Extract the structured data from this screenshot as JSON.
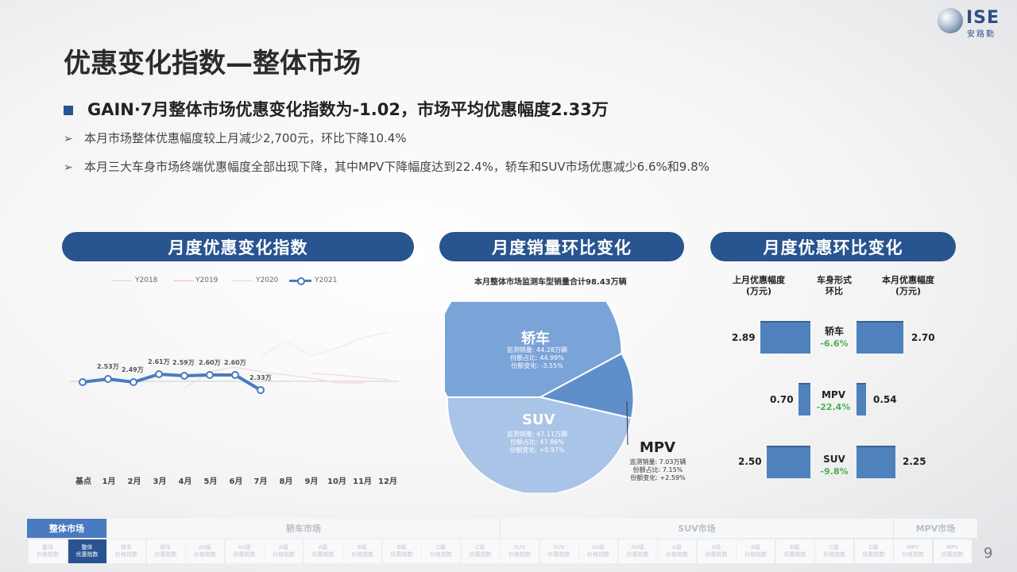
{
  "page_title": "优惠变化指数—整体市场",
  "logo": {
    "name": "ISE",
    "sub": "安路勤"
  },
  "headline": "GAIN·7月整体市场优惠变化指数为-1.02，市场平均优惠幅度2.33万",
  "bullets": [
    "本月市场整体优惠幅度较上月减少2,700元，环比下降10.4%",
    "本月三大车身市场终端优惠幅度全部出现下降，其中MPV下降幅度达到22.4%，轿车和SUV市场优惠减少6.6%和9.8%"
  ],
  "sections": {
    "s1": "月度优惠变化指数",
    "s2": "月度销量环比变化",
    "s3": "月度优惠环比变化"
  },
  "line_chart": {
    "legend": [
      "Y2018",
      "Y2019",
      "Y2020",
      "Y2021"
    ],
    "months": [
      "基点",
      "1月",
      "2月",
      "3月",
      "4月",
      "5月",
      "6月",
      "7月",
      "8月",
      "9月",
      "10月",
      "11月",
      "12月"
    ],
    "point_labels": [
      "2.53万",
      "2.49万",
      "2.61万",
      "2.59万",
      "2.60万",
      "2.60万",
      "2.33万"
    ]
  },
  "chart_data": [
    {
      "type": "line",
      "x": [
        "基点",
        "1月",
        "2月",
        "3月",
        "4月",
        "5月",
        "6月",
        "7月"
      ],
      "series": [
        {
          "name": "Y2021",
          "values": [
            0,
            0.4,
            -0.15,
            1.1,
            0.9,
            1.0,
            1.0,
            -1.02
          ],
          "labels": [
            "",
            "2.53万",
            "2.49万",
            "2.61万",
            "2.59万",
            "2.60万",
            "2.60万",
            "2.33万"
          ]
        }
      ],
      "legend": [
        "Y2018",
        "Y2019",
        "Y2020",
        "Y2021"
      ],
      "xlabel": "",
      "ylabel": ""
    },
    {
      "type": "pie",
      "title": "本月整体市场监测车型销量合计98.43万辆",
      "slices": [
        {
          "name": "轿车",
          "value": 44.99
        },
        {
          "name": "MPV",
          "value": 7.15
        },
        {
          "name": "SUV",
          "value": 47.86
        }
      ]
    },
    {
      "type": "bar",
      "categories": [
        "轿车",
        "MPV",
        "SUV"
      ],
      "series": [
        {
          "name": "上月优惠幅度(万元)",
          "values": [
            2.89,
            0.7,
            2.5
          ]
        },
        {
          "name": "本月优惠幅度(万元)",
          "values": [
            2.7,
            0.54,
            2.25
          ]
        }
      ]
    }
  ],
  "pie": {
    "title": "本月整体市场监测车型销量合计98.43万辆",
    "sedan": {
      "name": "轿车",
      "l1": "监测销量: 44.28万辆",
      "l2": "份额占比: 44.99%",
      "l3": "份额变化: -3.55%"
    },
    "suv": {
      "name": "SUV",
      "l1": "监测销量: 47.11万辆",
      "l2": "份额占比: 47.86%",
      "l3": "份额变化: +0.97%"
    },
    "mpv": {
      "name": "MPV",
      "l1": "监测销量: 7.03万辆",
      "l2": "份额占比: 7.15%",
      "l3": "份额变化: +2.59%"
    }
  },
  "compare": {
    "h_left": "上月优惠幅度",
    "h_left2": "(万元)",
    "h_mid": "车身形式",
    "h_mid2": "环比",
    "h_right": "本月优惠幅度",
    "h_right2": "(万元)",
    "rows": [
      {
        "seg": "轿车",
        "pct": "-6.6%",
        "prev": "2.89",
        "cur": "2.70"
      },
      {
        "seg": "MPV",
        "pct": "-22.4%",
        "prev": "0.70",
        "cur": "0.54"
      },
      {
        "seg": "SUV",
        "pct": "-9.8%",
        "prev": "2.50",
        "cur": "2.25"
      }
    ],
    "color_bar": "#4f81bd"
  },
  "nav": {
    "top": [
      "整体市场",
      "轿车市场",
      "SUV市场",
      "MPV市场"
    ],
    "subs": [
      [
        "整体",
        "价格指数"
      ],
      [
        "整体",
        "优惠指数"
      ],
      [
        "轿车",
        "价格指数"
      ],
      [
        "轿车",
        "优惠指数"
      ],
      [
        "A0级",
        "价格指数"
      ],
      [
        "A0级",
        "优惠指数"
      ],
      [
        "A级",
        "价格指数"
      ],
      [
        "A级",
        "优惠指数"
      ],
      [
        "B级",
        "价格指数"
      ],
      [
        "B级",
        "优惠指数"
      ],
      [
        "C级",
        "价格指数"
      ],
      [
        "C级",
        "优惠指数"
      ],
      [
        "SUV",
        "价格指数"
      ],
      [
        "SUV",
        "优惠指数"
      ],
      [
        "A0级",
        "价格指数"
      ],
      [
        "A0级",
        "优惠指数"
      ],
      [
        "A级",
        "价格指数"
      ],
      [
        "A级",
        "优惠指数"
      ],
      [
        "B级",
        "价格指数"
      ],
      [
        "B级",
        "优惠指数"
      ],
      [
        "C级",
        "价格指数"
      ],
      [
        "C级",
        "优惠指数"
      ],
      [
        "MPV",
        "价格指数"
      ],
      [
        "MPV",
        "优惠指数"
      ]
    ]
  },
  "page_number": "9",
  "colors": {
    "accent": "#28548f",
    "pie_dark": "#7aa3d8",
    "pie_light": "#a9c4e6",
    "positive": "#4caf50"
  }
}
